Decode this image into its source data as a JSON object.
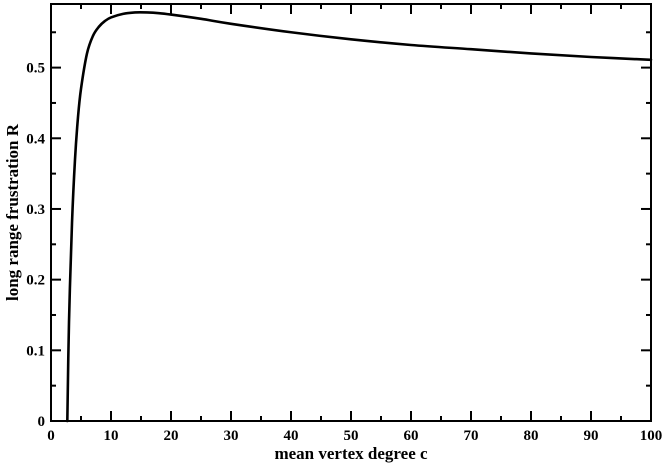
{
  "chart_data": {
    "type": "line",
    "title": "",
    "xlabel": "mean vertex degree c",
    "ylabel": "long range frustration R",
    "xlim": [
      0,
      100
    ],
    "ylim": [
      0,
      0.59
    ],
    "xticks": [
      0,
      10,
      20,
      30,
      40,
      50,
      60,
      70,
      80,
      90,
      100
    ],
    "yticks": [
      0,
      0.1,
      0.2,
      0.3,
      0.4,
      0.5
    ],
    "ytick_labels": [
      "0",
      "0.1",
      "0.2",
      "0.3",
      "0.4",
      "0.5"
    ],
    "grid": false,
    "legend": "none",
    "series": [
      {
        "color": "#000000",
        "x": [
          2.72,
          3,
          3.5,
          4,
          4.5,
          5,
          6,
          7,
          8,
          9,
          10,
          12,
          14,
          16,
          18,
          20,
          25,
          30,
          40,
          50,
          60,
          70,
          80,
          90,
          100
        ],
        "y": [
          0.0,
          0.14,
          0.28,
          0.37,
          0.43,
          0.47,
          0.52,
          0.545,
          0.558,
          0.566,
          0.571,
          0.576,
          0.578,
          0.578,
          0.577,
          0.575,
          0.569,
          0.562,
          0.55,
          0.54,
          0.532,
          0.526,
          0.52,
          0.515,
          0.511
        ]
      }
    ]
  }
}
